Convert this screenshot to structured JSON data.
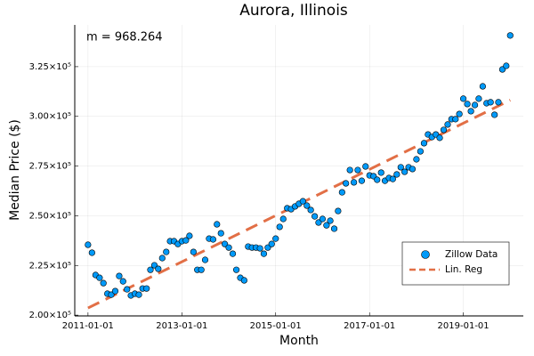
{
  "chart_data": {
    "type": "scatter",
    "title": "Aurora, Illinois",
    "xlabel": "Month",
    "ylabel": "Median Price ($)",
    "annotation": "m = 968.264",
    "xlim": [
      "2010-09-20",
      "2020-04-12"
    ],
    "xticks": [
      "2011-01-01",
      "2013-01-01",
      "2015-01-01",
      "2017-01-01",
      "2019-01-01"
    ],
    "ylim": [
      199600,
      346000
    ],
    "yticks": [
      {
        "value": 200000,
        "label": "2.00×10⁵"
      },
      {
        "value": 225000,
        "label": "2.25×10⁵"
      },
      {
        "value": 250000,
        "label": "2.50×10⁵"
      },
      {
        "value": 275000,
        "label": "2.75×10⁵"
      },
      {
        "value": 300000,
        "label": "3.00×10⁵"
      },
      {
        "value": 325000,
        "label": "3.25×10⁵"
      }
    ],
    "grid": true,
    "legend": "bottom-right",
    "series": [
      {
        "name": "Zillow Data",
        "color": "#009af9",
        "mode": "markers",
        "x": [
          "2011-01-01",
          "2011-02-01",
          "2011-03-01",
          "2011-04-01",
          "2011-05-01",
          "2011-06-01",
          "2011-07-01",
          "2011-08-01",
          "2011-09-01",
          "2011-10-01",
          "2011-11-01",
          "2011-12-01",
          "2012-01-01",
          "2012-02-01",
          "2012-03-01",
          "2012-04-01",
          "2012-05-01",
          "2012-06-01",
          "2012-07-01",
          "2012-08-01",
          "2012-09-01",
          "2012-10-01",
          "2012-11-01",
          "2012-12-01",
          "2013-01-01",
          "2013-02-01",
          "2013-03-01",
          "2013-04-01",
          "2013-05-01",
          "2013-06-01",
          "2013-07-01",
          "2013-08-01",
          "2013-09-01",
          "2013-10-01",
          "2013-11-01",
          "2013-12-01",
          "2014-01-01",
          "2014-02-01",
          "2014-03-01",
          "2014-04-01",
          "2014-05-01",
          "2014-06-01",
          "2014-07-01",
          "2014-08-01",
          "2014-09-01",
          "2014-10-01",
          "2014-11-01",
          "2014-12-01",
          "2015-01-01",
          "2015-02-01",
          "2015-03-01",
          "2015-04-01",
          "2015-05-01",
          "2015-06-01",
          "2015-07-01",
          "2015-08-01",
          "2015-09-01",
          "2015-10-01",
          "2015-11-01",
          "2015-12-01",
          "2016-01-01",
          "2016-02-01",
          "2016-03-01",
          "2016-04-01",
          "2016-05-01",
          "2016-06-01",
          "2016-07-01",
          "2016-08-01",
          "2016-09-01",
          "2016-10-01",
          "2016-11-01",
          "2016-12-01",
          "2017-01-01",
          "2017-02-01",
          "2017-03-01",
          "2017-04-01",
          "2017-05-01",
          "2017-06-01",
          "2017-07-01",
          "2017-08-01",
          "2017-09-01",
          "2017-10-01",
          "2017-11-01",
          "2017-12-01",
          "2018-01-01",
          "2018-02-01",
          "2018-03-01",
          "2018-04-01",
          "2018-05-01",
          "2018-06-01",
          "2018-07-01",
          "2018-08-01",
          "2018-09-01",
          "2018-10-01",
          "2018-11-01",
          "2018-12-01",
          "2019-01-01",
          "2019-02-01",
          "2019-03-01",
          "2019-04-01",
          "2019-05-01",
          "2019-06-01",
          "2019-07-01",
          "2019-08-01",
          "2019-09-01",
          "2019-10-01",
          "2019-11-01",
          "2019-12-01",
          "2020-01-01"
        ],
        "values": [
          235400,
          231400,
          220200,
          218800,
          216100,
          210800,
          210300,
          212100,
          219700,
          217000,
          213000,
          209900,
          210800,
          210300,
          213400,
          213400,
          222800,
          225100,
          223300,
          228700,
          231800,
          237200,
          237200,
          235800,
          237200,
          237600,
          239900,
          231800,
          222800,
          222800,
          227800,
          238500,
          238100,
          245700,
          241200,
          235800,
          234000,
          230900,
          222800,
          218800,
          217500,
          234500,
          234000,
          234000,
          233600,
          230900,
          234000,
          235800,
          238500,
          244400,
          248400,
          253800,
          253300,
          254700,
          256000,
          257300,
          255100,
          252900,
          249700,
          246600,
          248400,
          245200,
          247500,
          243500,
          252400,
          261800,
          266300,
          273000,
          266800,
          273000,
          267600,
          274800,
          270300,
          269900,
          268100,
          271700,
          267600,
          269000,
          268500,
          270800,
          274400,
          272100,
          274400,
          273500,
          278400,
          282400,
          286500,
          290900,
          289600,
          290900,
          289200,
          293200,
          295900,
          298600,
          298600,
          301200,
          308900,
          306200,
          302600,
          305700,
          308900,
          315100,
          306600,
          307100,
          300800,
          307100,
          323600,
          325400,
          340700
        ]
      },
      {
        "name": "Lin. Reg",
        "color": "#e26f46",
        "mode": "dashed-line",
        "x": [
          "2011-01-01",
          "2020-01-01"
        ],
        "values": [
          203600,
          308170
        ]
      }
    ]
  }
}
